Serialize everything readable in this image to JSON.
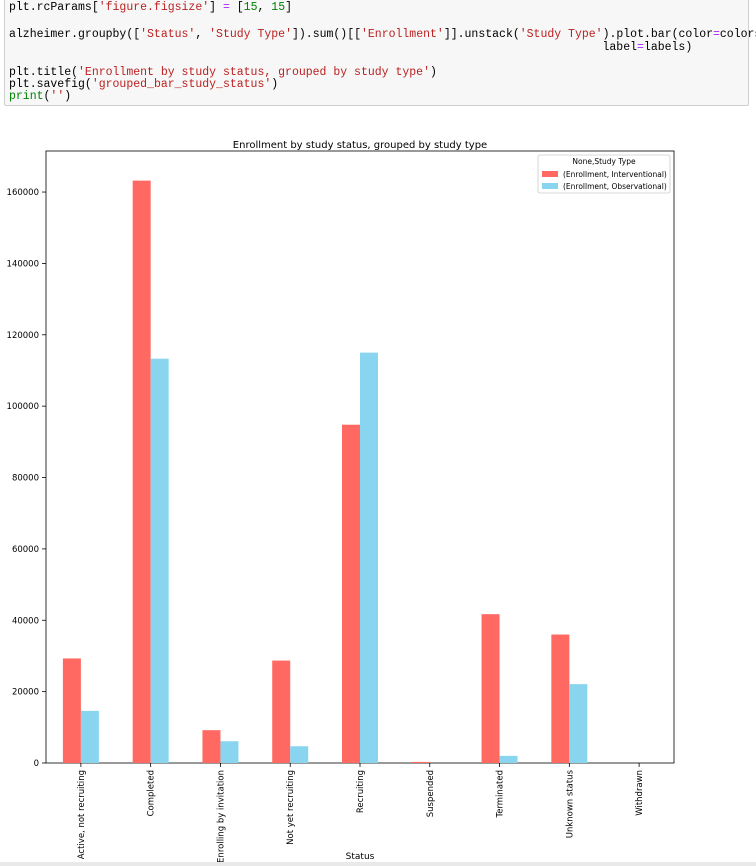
{
  "code": {
    "lines": [
      [
        {
          "t": "plt.rcParams["
        },
        {
          "t": "'figure.figsize'",
          "c": "str"
        },
        {
          "t": "] "
        },
        {
          "t": "=",
          "c": "kwarg"
        },
        {
          "t": " ["
        },
        {
          "t": "15",
          "c": "num"
        },
        {
          "t": ", "
        },
        {
          "t": "15",
          "c": "num"
        },
        {
          "t": "]"
        }
      ],
      [],
      [
        {
          "t": "alzheimer.groupby(["
        },
        {
          "t": "'Status'",
          "c": "str"
        },
        {
          "t": ", "
        },
        {
          "t": "'Study Type'",
          "c": "str"
        },
        {
          "t": "]).sum()[["
        },
        {
          "t": "'Enrollment'",
          "c": "str"
        },
        {
          "t": "]].unstack("
        },
        {
          "t": "'Study Type'",
          "c": "str"
        },
        {
          "t": ").plot.bar(color"
        },
        {
          "t": "=",
          "c": "kwarg"
        },
        {
          "t": "colors,"
        }
      ],
      [
        {
          "t": "                                                                                      label"
        },
        {
          "t": "=",
          "c": "kwarg"
        },
        {
          "t": "labels)"
        }
      ],
      [],
      [
        {
          "t": "plt.title("
        },
        {
          "t": "'Enrollment by study status, grouped by study type'",
          "c": "str"
        },
        {
          "t": ")"
        }
      ],
      [
        {
          "t": "plt.savefig("
        },
        {
          "t": "'grouped_bar_study_status'",
          "c": "str"
        },
        {
          "t": ")"
        }
      ],
      [
        {
          "t": "print",
          "c": "kw"
        },
        {
          "t": "("
        },
        {
          "t": "''",
          "c": "str"
        },
        {
          "t": ")"
        }
      ]
    ]
  },
  "chart_data": {
    "type": "bar",
    "title": "Enrollment by study status, grouped by study type",
    "xlabel": "Status",
    "ylabel": "",
    "ylim": [
      0,
      171500
    ],
    "yticks": [
      0,
      20000,
      40000,
      60000,
      80000,
      100000,
      120000,
      140000,
      160000
    ],
    "categories": [
      "Active, not recruiting",
      "Completed",
      "Enrolling by invitation",
      "Not yet recruiting",
      "Recruiting",
      "Suspended",
      "Terminated",
      "Unknown status",
      "Withdrawn"
    ],
    "series": [
      {
        "name": "(Enrollment, Interventional)",
        "color": "#ff6961",
        "values": [
          29300,
          163200,
          9200,
          28700,
          94800,
          300,
          41700,
          36000,
          0
        ]
      },
      {
        "name": "(Enrollment, Observational)",
        "color": "#89d5f0",
        "values": [
          14600,
          113300,
          6100,
          4700,
          115000,
          0,
          2000,
          22100,
          0
        ]
      }
    ],
    "legend": {
      "title": "None,Study Type",
      "placement": "top-right"
    },
    "grid": false
  }
}
